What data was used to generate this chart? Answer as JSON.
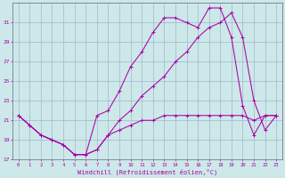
{
  "xlabel": "Windchill (Refroidissement éolien,°C)",
  "bg_color": "#cce8e8",
  "line_color": "#aa00aa",
  "grid_color": "#99aacc",
  "xlim": [
    -0.5,
    23.5
  ],
  "ylim": [
    17,
    33
  ],
  "yticks": [
    17,
    19,
    21,
    23,
    25,
    27,
    29,
    31
  ],
  "xticks": [
    0,
    1,
    2,
    3,
    4,
    5,
    6,
    7,
    8,
    9,
    10,
    11,
    12,
    13,
    14,
    15,
    16,
    17,
    18,
    19,
    20,
    21,
    22,
    23
  ],
  "series": [
    {
      "x": [
        0,
        1,
        2,
        3,
        4,
        5,
        6,
        7,
        8,
        9,
        10,
        11,
        12,
        13,
        14,
        15,
        16,
        17,
        18,
        19,
        20,
        21,
        22,
        23
      ],
      "y": [
        21.5,
        20.5,
        19.5,
        19.0,
        18.5,
        17.5,
        17.5,
        18.0,
        19.5,
        20.0,
        20.5,
        21.0,
        21.0,
        21.5,
        21.5,
        21.5,
        21.5,
        21.5,
        21.5,
        21.5,
        21.5,
        21.0,
        21.5,
        21.5
      ]
    },
    {
      "x": [
        0,
        1,
        2,
        3,
        4,
        5,
        6,
        7,
        8,
        9,
        10,
        11,
        12,
        13,
        14,
        15,
        16,
        17,
        18,
        19,
        20,
        21,
        22,
        23
      ],
      "y": [
        21.5,
        20.5,
        19.5,
        19.0,
        18.5,
        17.5,
        17.5,
        21.5,
        22.0,
        24.0,
        26.5,
        28.0,
        30.0,
        31.5,
        31.5,
        31.0,
        30.5,
        32.5,
        32.5,
        29.5,
        22.5,
        19.5,
        21.5,
        21.5
      ]
    },
    {
      "x": [
        0,
        1,
        2,
        3,
        4,
        5,
        6,
        7,
        8,
        9,
        10,
        11,
        12,
        13,
        14,
        15,
        16,
        17,
        18,
        19,
        20,
        21,
        22,
        23
      ],
      "y": [
        21.5,
        20.5,
        19.5,
        19.0,
        18.5,
        17.5,
        17.5,
        18.0,
        19.5,
        21.0,
        22.0,
        23.5,
        24.5,
        25.5,
        27.0,
        28.0,
        29.5,
        30.5,
        31.0,
        32.0,
        29.5,
        23.0,
        20.0,
        21.5
      ]
    }
  ]
}
